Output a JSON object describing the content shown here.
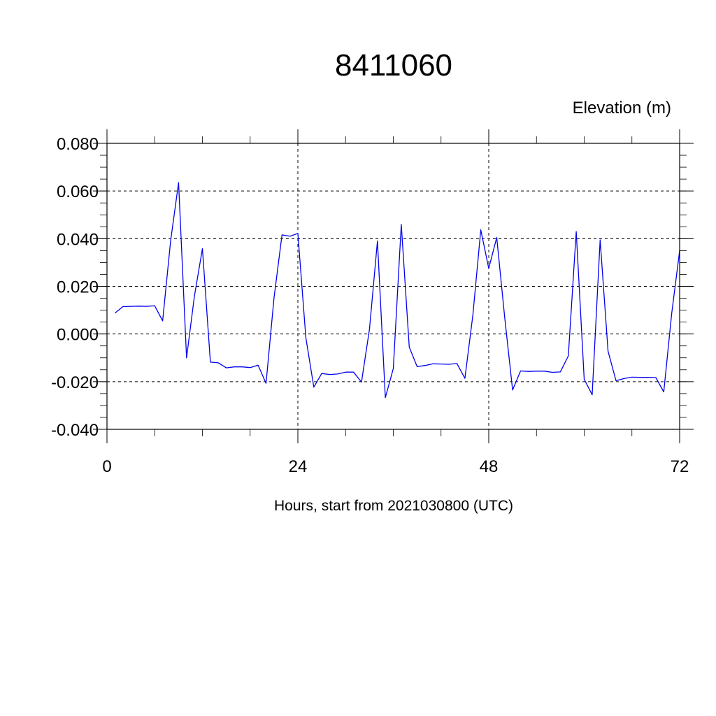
{
  "chart_data": {
    "type": "line",
    "title": "8411060",
    "ylabel": "Elevation (m)",
    "xlabel": "Hours, start from 2021030800 (UTC)",
    "xlim": [
      0,
      72
    ],
    "ylim": [
      -0.04,
      0.08
    ],
    "x_ticks": [
      0,
      24,
      48,
      72
    ],
    "x_tick_labels": [
      "0",
      "24",
      "48",
      "72"
    ],
    "y_ticks": [
      -0.04,
      -0.02,
      0.0,
      0.02,
      0.04,
      0.06,
      0.08
    ],
    "y_tick_labels": [
      "-0.040",
      "-0.020",
      "0.000",
      "0.020",
      "0.040",
      "0.060",
      "0.080"
    ],
    "grid": "dashed",
    "series": [
      {
        "color": "#0000ee",
        "x": [
          1,
          2,
          3,
          4,
          5,
          6,
          7,
          8,
          9,
          10,
          11,
          12,
          13,
          14,
          15,
          16,
          17,
          18,
          19,
          20,
          21,
          22,
          23,
          24,
          25,
          26,
          27,
          28,
          29,
          30,
          31,
          32,
          33,
          34,
          35,
          36,
          37,
          38,
          39,
          40,
          41,
          42,
          43,
          44,
          45,
          46,
          47,
          48,
          49,
          50,
          51,
          52,
          53,
          54,
          55,
          56,
          57,
          58,
          59,
          60,
          61,
          62,
          63,
          64,
          65,
          66,
          67,
          68,
          69,
          70,
          71,
          72
        ],
        "values": [
          0.0088,
          0.0115,
          0.0116,
          0.0117,
          0.0116,
          0.0118,
          0.0055,
          0.039,
          0.0635,
          -0.01,
          0.016,
          0.0358,
          -0.0118,
          -0.0121,
          -0.0142,
          -0.0138,
          -0.0138,
          -0.0141,
          -0.0131,
          -0.0207,
          0.0152,
          0.0416,
          0.041,
          0.0422,
          -0.0015,
          -0.0223,
          -0.0166,
          -0.017,
          -0.0168,
          -0.016,
          -0.016,
          -0.0202,
          0.002,
          0.039,
          -0.0267,
          -0.0145,
          0.046,
          -0.0055,
          -0.0137,
          -0.0132,
          -0.0125,
          -0.0126,
          -0.0127,
          -0.0124,
          -0.0186,
          0.008,
          0.0437,
          0.0275,
          0.0405,
          0.007,
          -0.0235,
          -0.0155,
          -0.0157,
          -0.0156,
          -0.0156,
          -0.0161,
          -0.0159,
          -0.0092,
          0.043,
          -0.019,
          -0.0255,
          0.0395,
          -0.0072,
          -0.0196,
          -0.0187,
          -0.0181,
          -0.0182,
          -0.0182,
          -0.0183,
          -0.0243,
          0.0085,
          0.035
        ]
      }
    ]
  }
}
